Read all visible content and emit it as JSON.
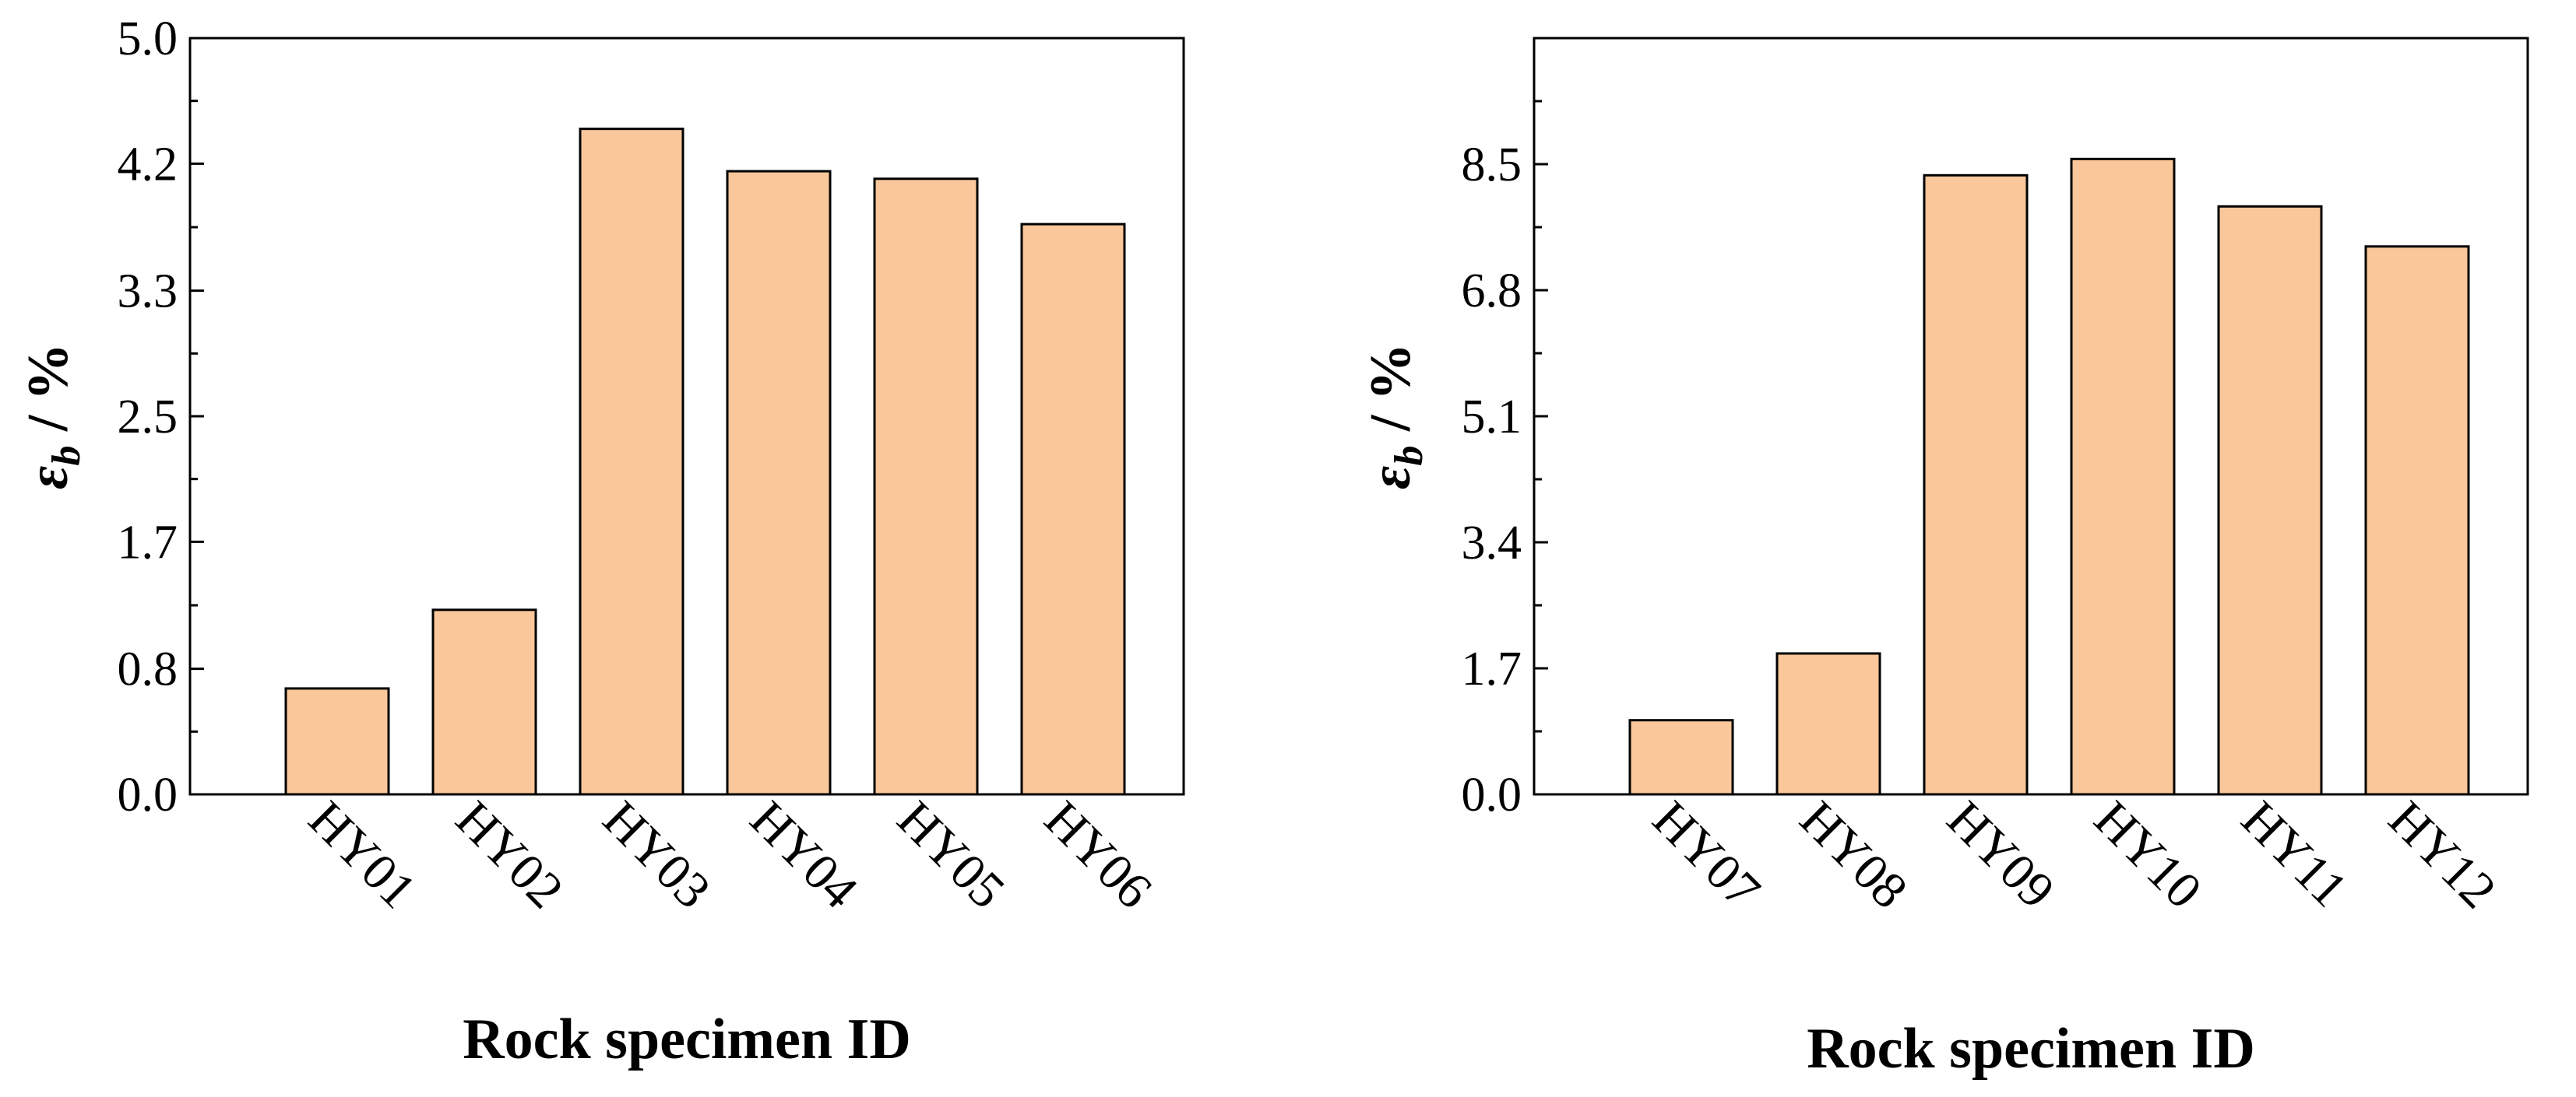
{
  "bar_color": "#F9C79A",
  "chart_data": [
    {
      "type": "bar",
      "title": "",
      "xlabel": "Rock specimen ID",
      "ylabel": "ε_b / %",
      "ylabel_main": "ε",
      "ylabel_sub": "b",
      "ylabel_unit": " / %",
      "categories": [
        "HY01",
        "HY02",
        "HY03",
        "HY04",
        "HY05",
        "HY06"
      ],
      "values": [
        0.7,
        1.22,
        4.4,
        4.12,
        4.07,
        3.77
      ],
      "ylim": [
        0.0,
        5.0
      ],
      "yticks": [
        0.0,
        0.83,
        1.67,
        2.5,
        3.33,
        4.17,
        5.0
      ],
      "ytick_labels": [
        "0.0",
        "0.8",
        "1.7",
        "2.5",
        "3.3",
        "4.2",
        "5.0"
      ],
      "grid": false,
      "legend": "none"
    },
    {
      "type": "bar",
      "title": "",
      "xlabel": "Rock specimen ID",
      "ylabel": "ε_b / %",
      "ylabel_main": "ε",
      "ylabel_sub": "b",
      "ylabel_unit": " / %",
      "categories": [
        "HY07",
        "HY08",
        "HY09",
        "HY10",
        "HY11",
        "HY12"
      ],
      "values": [
        1.0,
        1.9,
        8.35,
        8.57,
        7.93,
        7.39
      ],
      "ylim": [
        0.0,
        10.2
      ],
      "yticks": [
        0.0,
        1.7,
        3.4,
        5.1,
        6.8,
        8.5
      ],
      "ytick_labels": [
        "0.0",
        "1.7",
        "3.4",
        "5.1",
        "6.8",
        "8.5"
      ],
      "grid": false,
      "legend": "none"
    }
  ]
}
